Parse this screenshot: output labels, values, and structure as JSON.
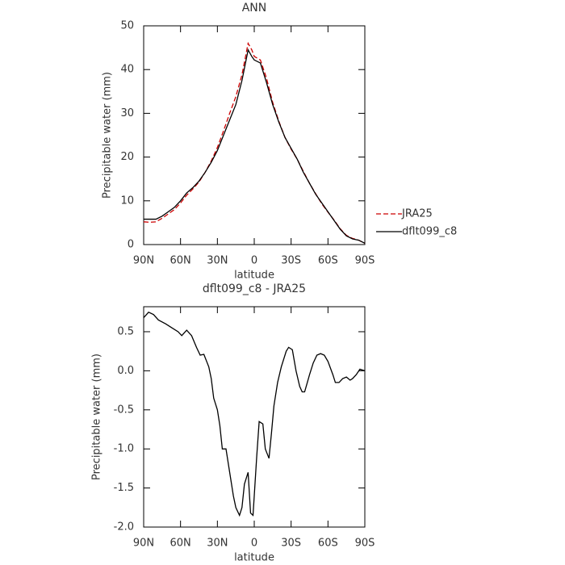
{
  "chart_data": [
    {
      "type": "line",
      "title": "ANN",
      "xlabel": "latitude",
      "ylabel": "Precipitable water (mm)",
      "x": [
        90,
        85,
        80,
        75,
        70,
        65,
        60,
        55,
        50,
        45,
        40,
        35,
        30,
        25,
        20,
        15,
        10,
        5,
        2,
        0,
        -5,
        -10,
        -15,
        -20,
        -25,
        -30,
        -35,
        -40,
        -45,
        -50,
        -55,
        -60,
        -65,
        -70,
        -75,
        -80,
        -85,
        -90
      ],
      "series": [
        {
          "name": "JRA25",
          "color": "#cc0000",
          "line_style": "dashed",
          "values": [
            5.2,
            5.1,
            5.2,
            6,
            7,
            8,
            9.5,
            11.3,
            12.7,
            14.3,
            16.5,
            19.1,
            22.2,
            26,
            30,
            33.8,
            38.8,
            46,
            44.5,
            43,
            42.2,
            38,
            32.5,
            28.2,
            24.5,
            21.8,
            19.5,
            16.7,
            14,
            11.6,
            9.3,
            7.4,
            5.6,
            3.6,
            2.1,
            1.4,
            1,
            0.3
          ]
        },
        {
          "name": "dflt099_c8",
          "color": "#000000",
          "line_style": "solid",
          "values": [
            5.8,
            5.8,
            5.8,
            6.5,
            7.5,
            8.5,
            10,
            11.8,
            13,
            14.5,
            16.5,
            18.8,
            21.5,
            25,
            28.5,
            32,
            37.5,
            44.5,
            43,
            42.2,
            41.5,
            37,
            32,
            28,
            24.5,
            22,
            19.5,
            16.5,
            14,
            11.5,
            9.5,
            7.5,
            5.5,
            3.5,
            2,
            1.3,
            1,
            0.3
          ]
        }
      ],
      "xlim": [
        90,
        -90
      ],
      "xticks": [
        {
          "value": 90,
          "label": "90N"
        },
        {
          "value": 60,
          "label": "60N"
        },
        {
          "value": 30,
          "label": "30N"
        },
        0,
        {
          "value": -30,
          "label": "30S"
        },
        {
          "value": -60,
          "label": "60S"
        },
        {
          "value": -90,
          "label": "90S"
        }
      ],
      "ylim": [
        0,
        50
      ],
      "yticks": [
        0,
        10,
        20,
        30,
        40,
        50
      ],
      "legend": "right"
    },
    {
      "type": "line",
      "title": "dflt099_c8 - JRA25",
      "xlabel": "latitude",
      "ylabel": "Precipitable water (mm)",
      "x": [
        90,
        86,
        82,
        78,
        72,
        67,
        62,
        59,
        55,
        51,
        47,
        44,
        41,
        37,
        35,
        33,
        30,
        28,
        26,
        23,
        20,
        17,
        15,
        12,
        10,
        8,
        5,
        3,
        1,
        -2,
        -4,
        -7,
        -9,
        -12,
        -14,
        -16,
        -19,
        -22,
        -26,
        -28,
        -31,
        -34,
        -37,
        -39,
        -41,
        -45,
        -48,
        -51,
        -54,
        -57,
        -60,
        -64,
        -66,
        -69,
        -72,
        -75,
        -78,
        -80,
        -83,
        -86,
        -90
      ],
      "series": [
        {
          "color": "#000000",
          "line_style": "solid",
          "values": [
            0.68,
            0.75,
            0.72,
            0.65,
            0.6,
            0.55,
            0.5,
            0.45,
            0.52,
            0.45,
            0.3,
            0.2,
            0.21,
            0.05,
            -0.1,
            -0.35,
            -0.5,
            -0.7,
            -1.0,
            -1.0,
            -1.3,
            -1.6,
            -1.75,
            -1.85,
            -1.75,
            -1.45,
            -1.3,
            -1.82,
            -1.85,
            -1.1,
            -0.65,
            -0.68,
            -1.0,
            -1.12,
            -0.8,
            -0.45,
            -0.15,
            0.05,
            0.25,
            0.3,
            0.27,
            0.0,
            -0.2,
            -0.27,
            -0.27,
            -0.05,
            0.1,
            0.2,
            0.22,
            0.2,
            0.12,
            -0.05,
            -0.15,
            -0.15,
            -0.1,
            -0.08,
            -0.12,
            -0.1,
            -0.05,
            0.02,
            0.0
          ]
        }
      ],
      "xlim": [
        90,
        -90
      ],
      "xticks": [
        {
          "value": 90,
          "label": "90N"
        },
        {
          "value": 60,
          "label": "60N"
        },
        {
          "value": 30,
          "label": "30N"
        },
        0,
        {
          "value": -30,
          "label": "30S"
        },
        {
          "value": -60,
          "label": "60S"
        },
        {
          "value": -90,
          "label": "90S"
        }
      ],
      "ylim": [
        -2,
        0.82
      ],
      "yticks": [
        {
          "value": -2,
          "label": "-2.0"
        },
        -1.5,
        {
          "value": -1,
          "label": "-1.0"
        },
        -0.5,
        {
          "value": 0,
          "label": "0.0"
        },
        0.5
      ]
    }
  ]
}
